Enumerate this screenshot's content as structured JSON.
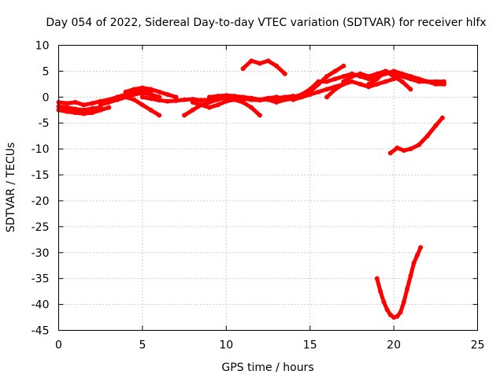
{
  "chart_data": {
    "type": "scatter",
    "title": "Day 054 of 2022, Sidereal Day-to-day VTEC variation (SDTVAR) for receiver hlfx",
    "xlabel": "GPS time / hours",
    "ylabel": "SDTVAR / TECUs",
    "xlim": [
      0,
      25
    ],
    "ylim": [
      -45,
      10
    ],
    "xticks": [
      0,
      5,
      10,
      15,
      20,
      25
    ],
    "yticks": [
      10,
      5,
      0,
      -5,
      -10,
      -15,
      -20,
      -25,
      -30,
      -35,
      -40,
      -45
    ],
    "grid": true,
    "color": "#ff0000",
    "series": [
      {
        "x": [
          0.0,
          0.5,
          1.0,
          1.5,
          2.0,
          2.5,
          3.0,
          3.5,
          4.0,
          4.5,
          5.0,
          5.5
        ],
        "y": [
          -1.0,
          -1.2,
          -1.0,
          -1.5,
          -1.2,
          -0.8,
          -0.5,
          0.0,
          0.5,
          1.0,
          1.2,
          0.8
        ]
      },
      {
        "x": [
          0.0,
          0.5,
          1.0,
          1.5,
          2.0,
          2.5,
          3.0
        ],
        "y": [
          -2.5,
          -2.8,
          -3.0,
          -3.2,
          -3.0,
          -2.5,
          -2.0
        ]
      },
      {
        "x": [
          0.0,
          0.5,
          1.0,
          1.5,
          2.0,
          2.5
        ],
        "y": [
          -1.8,
          -2.0,
          -2.3,
          -2.5,
          -2.2,
          -2.0
        ]
      },
      {
        "x": [
          2.5,
          3.0,
          3.5,
          4.0,
          4.5,
          5.0,
          5.5,
          6.0
        ],
        "y": [
          -1.5,
          -1.0,
          -0.5,
          0.0,
          0.5,
          0.8,
          0.5,
          0.0
        ]
      },
      {
        "x": [
          3.5,
          4.0,
          4.5,
          5.0,
          5.5,
          6.0
        ],
        "y": [
          -0.5,
          0.0,
          -0.5,
          -1.5,
          -2.5,
          -3.5
        ]
      },
      {
        "x": [
          4.0,
          4.5,
          5.0,
          5.5,
          6.0,
          6.5,
          7.0
        ],
        "y": [
          1.0,
          1.5,
          1.8,
          1.5,
          1.0,
          0.5,
          0.0
        ]
      },
      {
        "x": [
          5.0,
          5.5,
          6.0,
          6.5,
          7.0,
          7.5,
          8.0,
          8.5,
          9.0,
          9.5,
          10.0,
          10.5,
          11.0,
          11.5,
          12.0,
          12.5,
          13.0,
          13.5,
          14.0
        ],
        "y": [
          0.0,
          -0.3,
          -0.6,
          -0.8,
          -0.7,
          -0.5,
          -0.4,
          -0.6,
          -0.5,
          -0.3,
          -0.2,
          -0.4,
          -0.3,
          -0.5,
          -0.6,
          -0.4,
          -0.2,
          0.0,
          0.2
        ]
      },
      {
        "x": [
          7.5,
          8.0,
          8.5,
          9.0,
          9.5,
          10.0
        ],
        "y": [
          -3.5,
          -2.5,
          -1.5,
          -1.0,
          -0.5,
          0.0
        ]
      },
      {
        "x": [
          8.0,
          8.5,
          9.0,
          9.5,
          10.0,
          10.5,
          11.0,
          11.5,
          12.0
        ],
        "y": [
          -1.0,
          -1.5,
          -2.0,
          -1.5,
          -0.8,
          -0.5,
          -1.0,
          -2.0,
          -3.5
        ]
      },
      {
        "x": [
          9.0,
          9.5,
          10.0,
          10.5,
          11.0,
          11.5,
          12.0,
          12.5,
          13.0
        ],
        "y": [
          0.0,
          0.2,
          0.3,
          0.2,
          0.0,
          -0.2,
          -0.5,
          -0.2,
          0.0
        ]
      },
      {
        "x": [
          11.0,
          11.5,
          12.0,
          12.5,
          13.0,
          13.5
        ],
        "y": [
          5.5,
          7.0,
          6.5,
          7.0,
          6.0,
          4.5
        ]
      },
      {
        "x": [
          13.0,
          13.5,
          14.0,
          14.5,
          15.0,
          15.5,
          16.0,
          16.5,
          17.0
        ],
        "y": [
          0.0,
          -0.5,
          -0.3,
          0.0,
          1.0,
          2.5,
          4.0,
          5.0,
          6.0
        ]
      },
      {
        "x": [
          12.5,
          13.0,
          13.5,
          14.0,
          14.5,
          15.0,
          15.5,
          16.0,
          16.5,
          17.0,
          17.5,
          18.0,
          18.5,
          19.0,
          19.5,
          20.0,
          20.5,
          21.0,
          21.5,
          22.0,
          22.5,
          23.0
        ],
        "y": [
          -0.5,
          -1.0,
          -0.5,
          0.0,
          0.5,
          1.5,
          3.0,
          3.0,
          3.5,
          4.0,
          4.5,
          4.0,
          3.5,
          4.0,
          4.5,
          5.0,
          4.5,
          4.0,
          3.5,
          3.0,
          3.0,
          3.0
        ]
      },
      {
        "x": [
          14.0,
          14.5,
          15.0,
          15.5,
          16.0,
          16.5,
          17.0
        ],
        "y": [
          -0.5,
          0.0,
          0.5,
          1.0,
          1.5,
          2.0,
          2.5
        ]
      },
      {
        "x": [
          16.0,
          16.5,
          17.0,
          17.5,
          18.0,
          18.5,
          19.0,
          19.5,
          20.0
        ],
        "y": [
          0.0,
          1.5,
          2.5,
          3.0,
          2.5,
          2.0,
          2.5,
          3.0,
          3.5
        ]
      },
      {
        "x": [
          17.0,
          17.5,
          18.0,
          18.5,
          19.0,
          19.5,
          20.0,
          20.5,
          21.0
        ],
        "y": [
          3.0,
          4.0,
          4.5,
          4.0,
          4.5,
          5.0,
          4.0,
          3.0,
          1.5
        ]
      },
      {
        "x": [
          18.5,
          19.0,
          19.5,
          20.0,
          20.5,
          21.0,
          21.5,
          22.0,
          22.5,
          23.0
        ],
        "y": [
          2.5,
          3.5,
          5.0,
          4.5,
          4.0,
          3.5,
          3.0,
          3.0,
          2.5,
          2.5
        ]
      },
      {
        "x": [
          19.0,
          19.2,
          19.4,
          19.6,
          19.8,
          20.0,
          20.2,
          20.4,
          20.6,
          20.8,
          21.0,
          21.2,
          21.4,
          21.6
        ],
        "y": [
          -35.0,
          -37.5,
          -39.5,
          -41.0,
          -42.0,
          -42.5,
          -42.3,
          -41.5,
          -39.5,
          -37.0,
          -34.5,
          -32.0,
          -30.5,
          -29.0
        ]
      },
      {
        "x": [
          19.8,
          20.2,
          20.6,
          21.0,
          21.5,
          22.0,
          22.5,
          22.9
        ],
        "y": [
          -10.8,
          -9.8,
          -10.3,
          -10.0,
          -9.2,
          -7.5,
          -5.5,
          -4.0
        ]
      }
    ]
  }
}
